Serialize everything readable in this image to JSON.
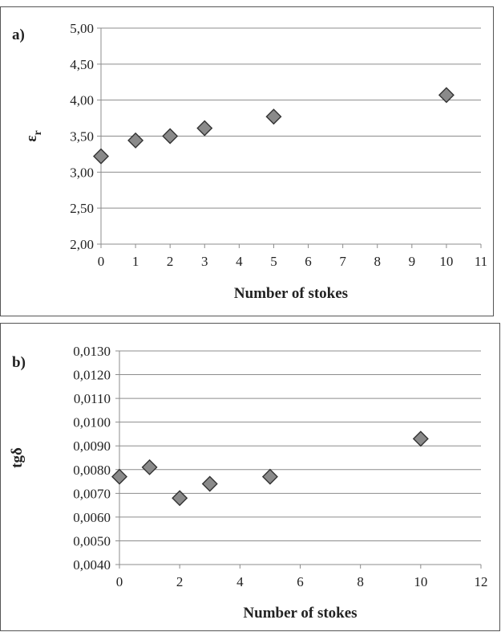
{
  "chart_data": [
    {
      "type": "scatter",
      "panel_label": "a)",
      "xlabel": "Number of stokes",
      "ylabel_main": "ε",
      "ylabel_sub": "r",
      "xlim": [
        0,
        11
      ],
      "ylim": [
        2.0,
        5.0
      ],
      "x_ticks": [
        0,
        1,
        2,
        3,
        4,
        5,
        6,
        7,
        8,
        9,
        10,
        11
      ],
      "x_tick_labels": [
        "0",
        "1",
        "2",
        "3",
        "4",
        "5",
        "6",
        "7",
        "8",
        "9",
        "10",
        "11"
      ],
      "y_ticks": [
        2.0,
        2.5,
        3.0,
        3.5,
        4.0,
        4.5,
        5.0
      ],
      "y_tick_labels": [
        "2,00",
        "2,50",
        "3,00",
        "3,50",
        "4,00",
        "4,50",
        "5,00"
      ],
      "grid": true,
      "marker": "diamond",
      "marker_color": "#8a8a8a",
      "points": [
        {
          "x": 0,
          "y": 3.22
        },
        {
          "x": 1,
          "y": 3.44
        },
        {
          "x": 2,
          "y": 3.5
        },
        {
          "x": 3,
          "y": 3.61
        },
        {
          "x": 5,
          "y": 3.77
        },
        {
          "x": 10,
          "y": 4.07
        }
      ]
    },
    {
      "type": "scatter",
      "panel_label": "b)",
      "xlabel": "Number of stokes",
      "ylabel_main": "tgδ",
      "ylabel_sub": "",
      "xlim": [
        0,
        12
      ],
      "ylim": [
        0.004,
        0.013
      ],
      "x_ticks": [
        0,
        2,
        4,
        6,
        8,
        10,
        12
      ],
      "x_tick_labels": [
        "0",
        "2",
        "4",
        "6",
        "8",
        "10",
        "12"
      ],
      "y_ticks": [
        0.004,
        0.005,
        0.006,
        0.007,
        0.008,
        0.009,
        0.01,
        0.011,
        0.012,
        0.013
      ],
      "y_tick_labels": [
        "0,0040",
        "0,0050",
        "0,0060",
        "0,0070",
        "0,0080",
        "0,0090",
        "0,0100",
        "0,0110",
        "0,0120",
        "0,0130"
      ],
      "grid": true,
      "marker": "diamond",
      "marker_color": "#8a8a8a",
      "points": [
        {
          "x": 0,
          "y": 0.0077
        },
        {
          "x": 1,
          "y": 0.0081
        },
        {
          "x": 2,
          "y": 0.0068
        },
        {
          "x": 3,
          "y": 0.0074
        },
        {
          "x": 5,
          "y": 0.0077
        },
        {
          "x": 10,
          "y": 0.0093
        }
      ]
    }
  ]
}
